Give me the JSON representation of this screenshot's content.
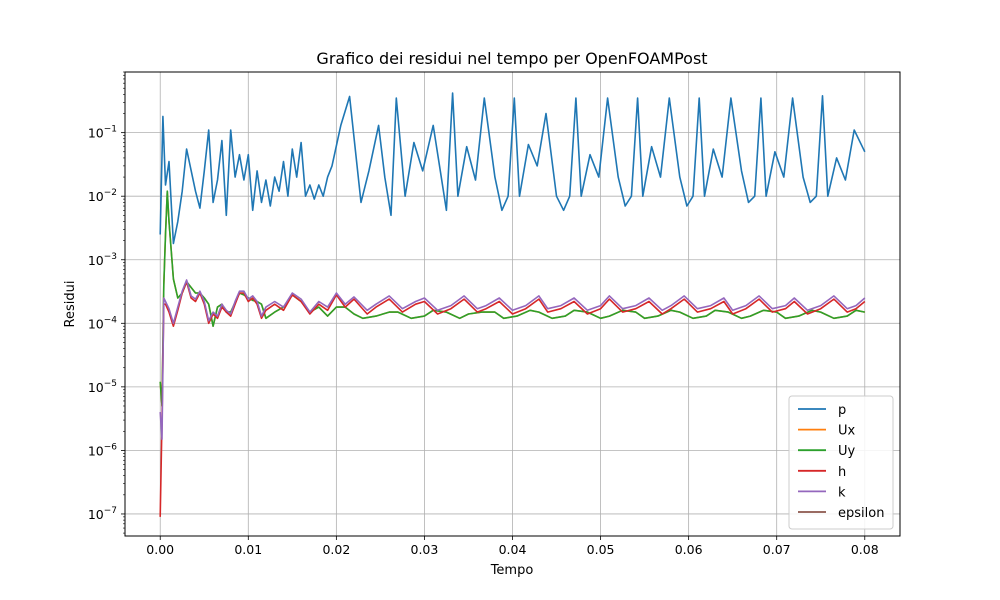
{
  "chart_data": {
    "type": "line",
    "title": "Grafico dei residui nel tempo per OpenFOAMPost",
    "xlabel": "Tempo",
    "ylabel": "Residui",
    "xlim": [
      -0.004,
      0.084
    ],
    "ylim": [
      4.5e-08,
      0.9
    ],
    "yscale": "log",
    "grid": true,
    "legend_position": "lower-right",
    "x_ticks": [
      {
        "value": 0.0,
        "label": "0.00"
      },
      {
        "value": 0.01,
        "label": "0.01"
      },
      {
        "value": 0.02,
        "label": "0.02"
      },
      {
        "value": 0.03,
        "label": "0.03"
      },
      {
        "value": 0.04,
        "label": "0.04"
      },
      {
        "value": 0.05,
        "label": "0.05"
      },
      {
        "value": 0.06,
        "label": "0.06"
      },
      {
        "value": 0.07,
        "label": "0.07"
      },
      {
        "value": 0.08,
        "label": "0.08"
      }
    ],
    "y_ticks": [
      {
        "value": 1e-07,
        "base": "10",
        "exp": "−7"
      },
      {
        "value": 1e-06,
        "base": "10",
        "exp": "−6"
      },
      {
        "value": 1e-05,
        "base": "10",
        "exp": "−5"
      },
      {
        "value": 0.0001,
        "base": "10",
        "exp": "−4"
      },
      {
        "value": 0.001,
        "base": "10",
        "exp": "−3"
      },
      {
        "value": 0.01,
        "base": "10",
        "exp": "−2"
      },
      {
        "value": 0.1,
        "base": "10",
        "exp": "−1"
      }
    ],
    "series": [
      {
        "name": "p",
        "color": "#1f77b4",
        "x": [
          0.0,
          0.0003,
          0.0006,
          0.001,
          0.0015,
          0.002,
          0.0025,
          0.003,
          0.004,
          0.0045,
          0.005,
          0.0055,
          0.006,
          0.0065,
          0.007,
          0.0075,
          0.008,
          0.0085,
          0.009,
          0.0095,
          0.01,
          0.0105,
          0.011,
          0.0115,
          0.012,
          0.0125,
          0.013,
          0.0135,
          0.014,
          0.0145,
          0.015,
          0.0155,
          0.016,
          0.0165,
          0.017,
          0.0175,
          0.018,
          0.0185,
          0.019,
          0.0195,
          0.0205,
          0.0215,
          0.0228,
          0.0237,
          0.0248,
          0.0255,
          0.0262,
          0.0268,
          0.0278,
          0.0288,
          0.0298,
          0.031,
          0.0318,
          0.0325,
          0.0332,
          0.0338,
          0.0348,
          0.0358,
          0.0368,
          0.038,
          0.0388,
          0.0395,
          0.0402,
          0.0408,
          0.0418,
          0.0428,
          0.0438,
          0.045,
          0.0458,
          0.0465,
          0.0472,
          0.0478,
          0.0488,
          0.0498,
          0.0508,
          0.052,
          0.0528,
          0.0535,
          0.0542,
          0.0548,
          0.0558,
          0.0568,
          0.0578,
          0.059,
          0.0598,
          0.0605,
          0.0612,
          0.0618,
          0.0628,
          0.0638,
          0.0648,
          0.066,
          0.0668,
          0.0675,
          0.0682,
          0.0688,
          0.0698,
          0.0708,
          0.0718,
          0.073,
          0.0738,
          0.0745,
          0.0752,
          0.0758,
          0.0768,
          0.0778,
          0.0788,
          0.08
        ],
        "y": [
          0.0025,
          0.18,
          0.015,
          0.035,
          0.0018,
          0.004,
          0.012,
          0.055,
          0.012,
          0.0065,
          0.025,
          0.11,
          0.008,
          0.018,
          0.075,
          0.005,
          0.11,
          0.02,
          0.045,
          0.018,
          0.045,
          0.006,
          0.025,
          0.008,
          0.018,
          0.007,
          0.02,
          0.012,
          0.035,
          0.01,
          0.055,
          0.02,
          0.07,
          0.01,
          0.015,
          0.009,
          0.015,
          0.01,
          0.02,
          0.03,
          0.13,
          0.37,
          0.008,
          0.025,
          0.13,
          0.02,
          0.005,
          0.35,
          0.01,
          0.07,
          0.025,
          0.13,
          0.025,
          0.006,
          0.42,
          0.01,
          0.06,
          0.018,
          0.35,
          0.02,
          0.006,
          0.01,
          0.35,
          0.01,
          0.065,
          0.03,
          0.2,
          0.01,
          0.006,
          0.01,
          0.35,
          0.01,
          0.045,
          0.02,
          0.35,
          0.02,
          0.007,
          0.01,
          0.35,
          0.01,
          0.06,
          0.02,
          0.35,
          0.02,
          0.007,
          0.01,
          0.35,
          0.01,
          0.055,
          0.02,
          0.35,
          0.025,
          0.008,
          0.01,
          0.35,
          0.01,
          0.05,
          0.02,
          0.35,
          0.02,
          0.008,
          0.01,
          0.38,
          0.01,
          0.04,
          0.018,
          0.11,
          0.05
        ]
      },
      {
        "name": "Ux",
        "color": "#ff7f0e",
        "x": [
          0.0,
          0.0002,
          0.0004,
          0.0006,
          0.0008,
          0.001,
          0.0015,
          0.002,
          0.0025,
          0.003,
          0.004,
          0.0045,
          0.005,
          0.0055,
          0.006,
          0.0065,
          0.007,
          0.0075,
          0.008,
          0.009,
          0.0095,
          0.01,
          0.0105,
          0.011,
          0.0115,
          0.012,
          0.013,
          0.014,
          0.015,
          0.016,
          0.017,
          0.018,
          0.019,
          0.02,
          0.021,
          0.022,
          0.023,
          0.0245,
          0.026,
          0.027,
          0.0285,
          0.03,
          0.031,
          0.0325,
          0.034,
          0.035,
          0.0365,
          0.038,
          0.039,
          0.0405,
          0.042,
          0.043,
          0.0445,
          0.046,
          0.047,
          0.0485,
          0.05,
          0.051,
          0.0525,
          0.054,
          0.055,
          0.0565,
          0.058,
          0.059,
          0.0605,
          0.062,
          0.063,
          0.0645,
          0.066,
          0.067,
          0.0685,
          0.07,
          0.071,
          0.0725,
          0.074,
          0.075,
          0.0765,
          0.078,
          0.079,
          0.08
        ],
        "y": [
          1.2e-05,
          5e-06,
          0.0004,
          0.0025,
          0.012,
          0.004,
          0.0005,
          0.00025,
          0.0003,
          0.00045,
          0.0003,
          0.0003,
          0.00025,
          0.0002,
          9e-05,
          0.00018,
          0.0002,
          0.00015,
          0.00015,
          0.0003,
          0.00028,
          0.00025,
          0.00023,
          0.00022,
          0.0002,
          0.00012,
          0.00015,
          0.00018,
          0.00028,
          0.00022,
          0.00015,
          0.00018,
          0.00013,
          0.00018,
          0.00018,
          0.00014,
          0.00012,
          0.00013,
          0.00015,
          0.00015,
          0.00012,
          0.00013,
          0.00016,
          0.00015,
          0.00012,
          0.00014,
          0.00015,
          0.00015,
          0.00012,
          0.00013,
          0.00016,
          0.00015,
          0.00012,
          0.00013,
          0.00016,
          0.00015,
          0.00012,
          0.00013,
          0.00016,
          0.00015,
          0.00012,
          0.00013,
          0.00016,
          0.00015,
          0.00012,
          0.00013,
          0.00016,
          0.00015,
          0.00012,
          0.00013,
          0.00016,
          0.00015,
          0.00012,
          0.00013,
          0.00016,
          0.00015,
          0.00012,
          0.00013,
          0.00016,
          0.00015
        ]
      },
      {
        "name": "Uy",
        "color": "#2ca02c",
        "x": [
          0.0,
          0.0002,
          0.0004,
          0.0006,
          0.0008,
          0.001,
          0.0015,
          0.002,
          0.0025,
          0.003,
          0.004,
          0.0045,
          0.005,
          0.0055,
          0.006,
          0.0065,
          0.007,
          0.0075,
          0.008,
          0.009,
          0.0095,
          0.01,
          0.0105,
          0.011,
          0.0115,
          0.012,
          0.013,
          0.014,
          0.015,
          0.016,
          0.017,
          0.018,
          0.019,
          0.02,
          0.021,
          0.022,
          0.023,
          0.0245,
          0.026,
          0.027,
          0.0285,
          0.03,
          0.031,
          0.0325,
          0.034,
          0.035,
          0.0365,
          0.038,
          0.039,
          0.0405,
          0.042,
          0.043,
          0.0445,
          0.046,
          0.047,
          0.0485,
          0.05,
          0.051,
          0.0525,
          0.054,
          0.055,
          0.0565,
          0.058,
          0.059,
          0.0605,
          0.062,
          0.063,
          0.0645,
          0.066,
          0.067,
          0.0685,
          0.07,
          0.071,
          0.0725,
          0.074,
          0.075,
          0.0765,
          0.078,
          0.079,
          0.08
        ],
        "y": [
          1.2e-05,
          5e-06,
          0.0004,
          0.0025,
          0.012,
          0.004,
          0.0005,
          0.00025,
          0.0003,
          0.00045,
          0.0003,
          0.0003,
          0.00025,
          0.0002,
          9e-05,
          0.00018,
          0.0002,
          0.00015,
          0.00015,
          0.0003,
          0.00028,
          0.00025,
          0.00023,
          0.00022,
          0.0002,
          0.00012,
          0.00015,
          0.00018,
          0.00028,
          0.00022,
          0.00015,
          0.00018,
          0.00013,
          0.00018,
          0.00018,
          0.00014,
          0.00012,
          0.00013,
          0.00015,
          0.00015,
          0.00012,
          0.00013,
          0.00016,
          0.00015,
          0.00012,
          0.00014,
          0.00015,
          0.00015,
          0.00012,
          0.00013,
          0.00016,
          0.00015,
          0.00012,
          0.00013,
          0.00016,
          0.00015,
          0.00012,
          0.00013,
          0.00016,
          0.00015,
          0.00012,
          0.00013,
          0.00016,
          0.00015,
          0.00012,
          0.00013,
          0.00016,
          0.00015,
          0.00012,
          0.00013,
          0.00016,
          0.00015,
          0.00012,
          0.00013,
          0.00016,
          0.00015,
          0.00012,
          0.00013,
          0.00016,
          0.00015
        ]
      },
      {
        "name": "h",
        "color": "#d62728",
        "x": [
          0.0,
          0.0002,
          0.0004,
          0.0006,
          0.001,
          0.0015,
          0.002,
          0.0025,
          0.003,
          0.0035,
          0.004,
          0.0045,
          0.005,
          0.0055,
          0.006,
          0.0065,
          0.007,
          0.0075,
          0.008,
          0.0085,
          0.009,
          0.0095,
          0.01,
          0.0105,
          0.011,
          0.0115,
          0.012,
          0.013,
          0.014,
          0.015,
          0.016,
          0.017,
          0.018,
          0.019,
          0.02,
          0.021,
          0.022,
          0.0235,
          0.0245,
          0.026,
          0.0275,
          0.029,
          0.03,
          0.0315,
          0.033,
          0.0345,
          0.036,
          0.037,
          0.0385,
          0.04,
          0.0415,
          0.043,
          0.044,
          0.0455,
          0.047,
          0.0485,
          0.05,
          0.051,
          0.0525,
          0.054,
          0.0555,
          0.057,
          0.058,
          0.0595,
          0.061,
          0.0625,
          0.064,
          0.065,
          0.0665,
          0.068,
          0.0695,
          0.071,
          0.072,
          0.0735,
          0.075,
          0.0765,
          0.078,
          0.079,
          0.08
        ],
        "y": [
          9e-08,
          3e-06,
          0.0002,
          0.0002,
          0.00015,
          9e-05,
          0.00016,
          0.0003,
          0.00045,
          0.00025,
          0.00022,
          0.0003,
          0.0002,
          0.0001,
          0.00014,
          0.00012,
          0.00018,
          0.00015,
          0.00013,
          0.0002,
          0.0003,
          0.0003,
          0.00022,
          0.00025,
          0.0002,
          0.00012,
          0.00016,
          0.0002,
          0.00016,
          0.00028,
          0.00022,
          0.00014,
          0.0002,
          0.00016,
          0.00028,
          0.00018,
          0.00024,
          0.00014,
          0.00018,
          0.00024,
          0.00015,
          0.0002,
          0.00022,
          0.00014,
          0.00017,
          0.00024,
          0.00015,
          0.00017,
          0.00022,
          0.00014,
          0.00017,
          0.00024,
          0.00015,
          0.00017,
          0.00022,
          0.00014,
          0.00017,
          0.00024,
          0.00015,
          0.00017,
          0.00022,
          0.00014,
          0.00017,
          0.00024,
          0.00015,
          0.00017,
          0.00022,
          0.00014,
          0.00017,
          0.00024,
          0.00015,
          0.00017,
          0.00022,
          0.00014,
          0.00017,
          0.00024,
          0.00015,
          0.00017,
          0.00022
        ]
      },
      {
        "name": "k",
        "color": "#9467bd",
        "x": [
          0.0,
          0.0002,
          0.0004,
          0.0006,
          0.001,
          0.0015,
          0.002,
          0.0025,
          0.003,
          0.0035,
          0.004,
          0.0045,
          0.005,
          0.0055,
          0.006,
          0.0065,
          0.007,
          0.0075,
          0.008,
          0.0085,
          0.009,
          0.0095,
          0.01,
          0.0105,
          0.011,
          0.0115,
          0.012,
          0.013,
          0.014,
          0.015,
          0.016,
          0.017,
          0.018,
          0.019,
          0.02,
          0.021,
          0.022,
          0.0235,
          0.0245,
          0.026,
          0.0275,
          0.029,
          0.03,
          0.0315,
          0.033,
          0.0345,
          0.036,
          0.037,
          0.0385,
          0.04,
          0.0415,
          0.043,
          0.044,
          0.0455,
          0.047,
          0.0485,
          0.05,
          0.051,
          0.0525,
          0.054,
          0.0555,
          0.057,
          0.058,
          0.0595,
          0.061,
          0.0625,
          0.064,
          0.065,
          0.0665,
          0.068,
          0.0695,
          0.071,
          0.072,
          0.0735,
          0.075,
          0.0765,
          0.078,
          0.079,
          0.08
        ],
        "y": [
          4e-06,
          1.5e-06,
          0.00025,
          0.00022,
          0.00017,
          0.0001,
          0.00018,
          0.00032,
          0.00048,
          0.00027,
          0.00024,
          0.00032,
          0.00022,
          0.00011,
          0.00015,
          0.00013,
          0.0002,
          0.00016,
          0.00014,
          0.00022,
          0.00032,
          0.00032,
          0.00024,
          0.00027,
          0.00022,
          0.00013,
          0.00018,
          0.00022,
          0.00018,
          0.0003,
          0.00024,
          0.00015,
          0.00022,
          0.00018,
          0.0003,
          0.0002,
          0.00026,
          0.00016,
          0.0002,
          0.00027,
          0.00017,
          0.00022,
          0.00025,
          0.00016,
          0.00019,
          0.00027,
          0.00017,
          0.00019,
          0.00025,
          0.00016,
          0.00019,
          0.00027,
          0.00017,
          0.00019,
          0.00025,
          0.00016,
          0.00019,
          0.00027,
          0.00017,
          0.00019,
          0.00025,
          0.00016,
          0.00019,
          0.00027,
          0.00017,
          0.00019,
          0.00025,
          0.00016,
          0.00019,
          0.00027,
          0.00017,
          0.00019,
          0.00025,
          0.00016,
          0.00019,
          0.00027,
          0.00017,
          0.00019,
          0.00025
        ]
      },
      {
        "name": "epsilon",
        "color": "#8c564b",
        "x": [],
        "y": []
      }
    ]
  }
}
